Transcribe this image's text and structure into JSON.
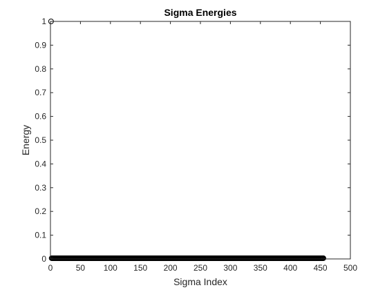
{
  "chart_data": {
    "type": "scatter",
    "title": "Sigma Energies",
    "xlabel": "Sigma Index",
    "ylabel": "Energy",
    "xlim": [
      0,
      500
    ],
    "ylim": [
      0,
      1
    ],
    "x_ticks": [
      "0",
      "50",
      "100",
      "150",
      "200",
      "250",
      "300",
      "350",
      "400",
      "450",
      "500"
    ],
    "y_ticks": [
      "0",
      "0.1",
      "0.2",
      "0.3",
      "0.4",
      "0.5",
      "0.6",
      "0.7",
      "0.8",
      "0.9",
      "1"
    ],
    "grid": false,
    "marker": "circle-open",
    "series": [
      {
        "x_start": 1,
        "x_end": 455,
        "first_value": 1,
        "rest_value": 0.003
      }
    ],
    "colors": {
      "marker": "#000000",
      "axis": "#262626",
      "background": "#ffffff"
    }
  }
}
